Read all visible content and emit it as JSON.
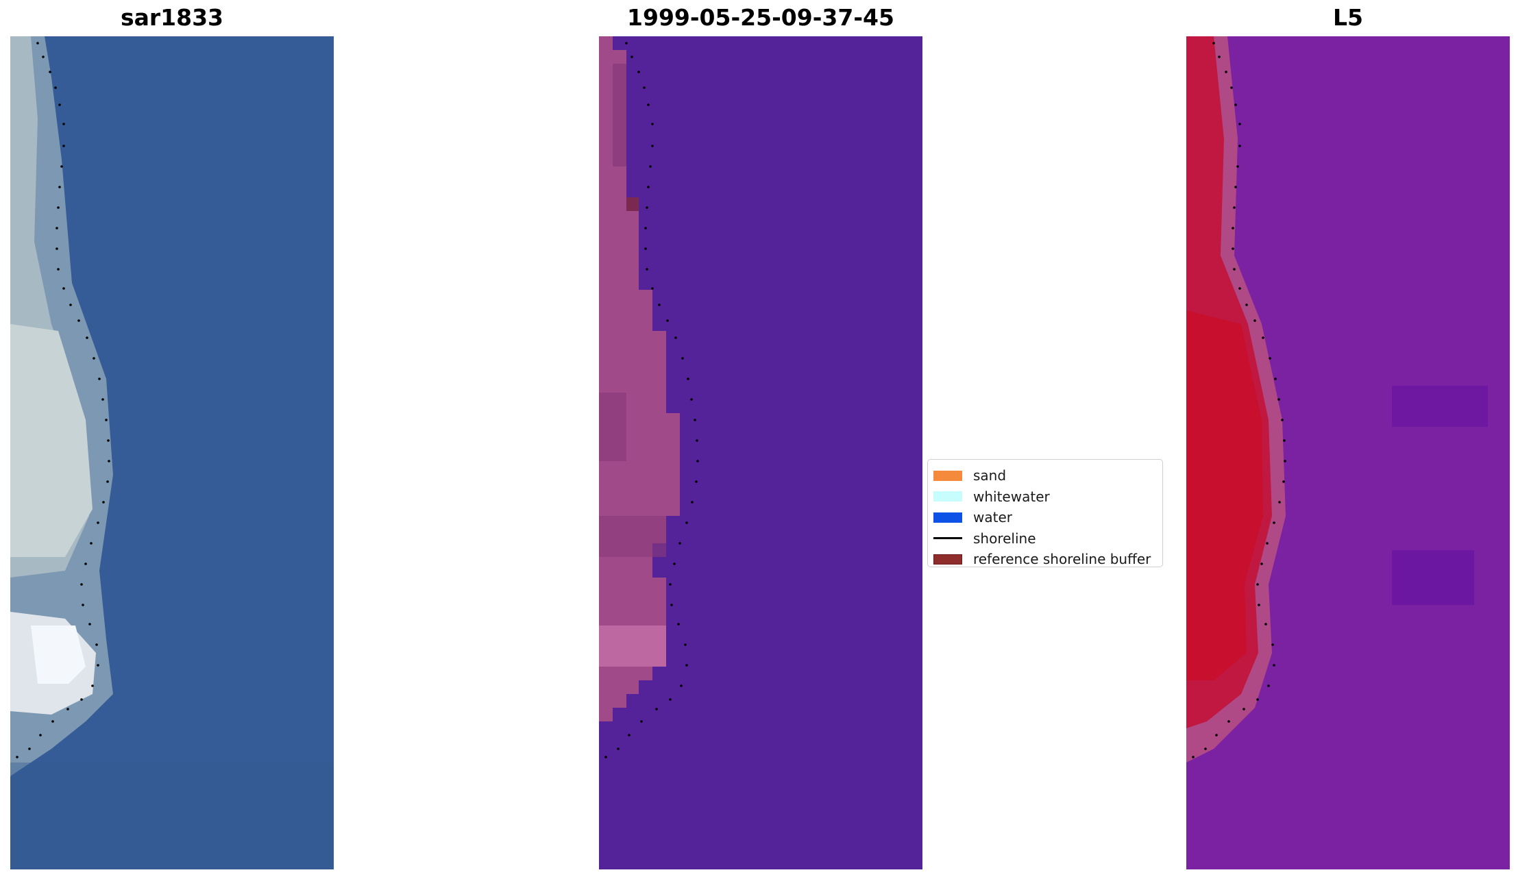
{
  "panels": [
    {
      "title": "sar1833"
    },
    {
      "title": "1999-05-25-09-37-45"
    },
    {
      "title": "L5"
    }
  ],
  "legend": {
    "items": [
      {
        "label": "sand",
        "color": "#f58a3c",
        "kind": "patch"
      },
      {
        "label": "whitewater",
        "color": "#c8fdfd",
        "kind": "patch"
      },
      {
        "label": "water",
        "color": "#0d52e6",
        "kind": "patch"
      },
      {
        "label": "shoreline",
        "color": "#000000",
        "kind": "line"
      },
      {
        "label": "reference shoreline buffer",
        "color": "#8f2d2d",
        "kind": "patch"
      }
    ]
  },
  "colors": {
    "rgb_water": "#345b95",
    "class_background": "#54239a",
    "class_sand": "#a04a8a",
    "ndwi_water": "#7a1fa0",
    "ndwi_land": "#c8102e"
  }
}
